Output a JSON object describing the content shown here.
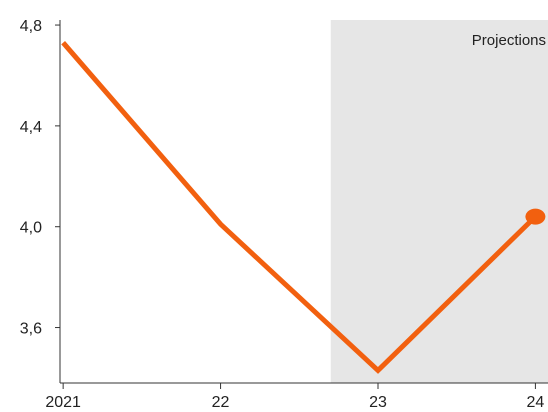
{
  "chart_data": {
    "type": "line",
    "title": "",
    "xlabel": "",
    "ylabel": "",
    "x": [
      2021,
      2022,
      2023,
      2024
    ],
    "x_tick_labels": [
      "2021",
      "22",
      "23",
      "24"
    ],
    "xlim": [
      2020.98,
      2024.08
    ],
    "ylim": [
      3.38,
      4.82
    ],
    "y_ticks": [
      3.6,
      4.0,
      4.4,
      4.8
    ],
    "y_tick_labels": [
      "3,6",
      "4,0",
      "4,4",
      "4,8"
    ],
    "grid": false,
    "series": [
      {
        "values": [
          4.73,
          4.01,
          3.43,
          4.04
        ],
        "color": "#F2600F",
        "end_marker": true
      }
    ],
    "annotations": [
      {
        "type": "shaded-region",
        "text": "Projections",
        "x_start": 2022.7,
        "x_end": 2024.08,
        "color": "#E6E6E6"
      }
    ]
  }
}
